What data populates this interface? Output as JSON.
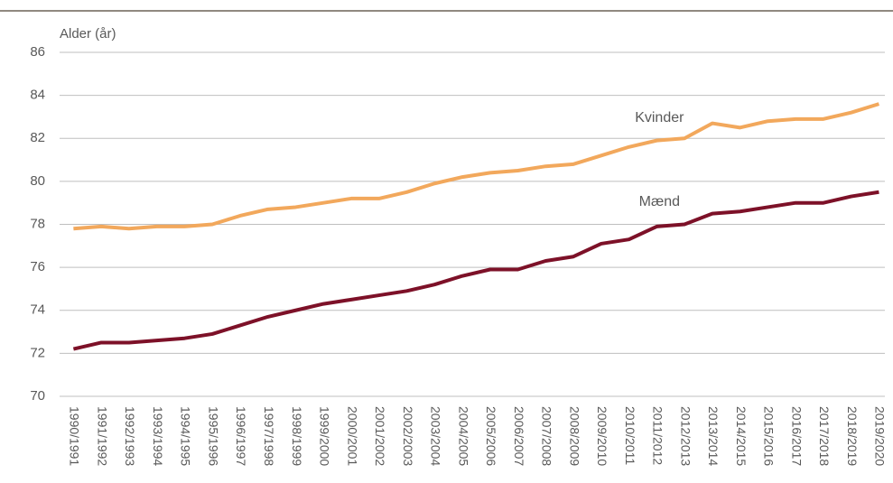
{
  "chart_data": {
    "type": "line",
    "y_axis_label": "Alder (år)",
    "categories": [
      "1990/1991",
      "1991/1992",
      "1992/1993",
      "1993/1994",
      "1994/1995",
      "1995/1996",
      "1996/1997",
      "1997/1998",
      "1998/1999",
      "1999/2000",
      "2000/2001",
      "2001/2002",
      "2002/2003",
      "2003/2004",
      "2004/2005",
      "2005/2006",
      "2006/2007",
      "2007/2008",
      "2008/2009",
      "2009/2010",
      "2010/2011",
      "2011/2012",
      "2012/2013",
      "2013/2014",
      "2014/2015",
      "2015/2016",
      "2016/2017",
      "2017/2018",
      "2018/2019",
      "2019/2020"
    ],
    "series": [
      {
        "name": "Kvinder",
        "color": "#f2a85c",
        "values": [
          77.8,
          77.9,
          77.8,
          77.9,
          77.9,
          78.0,
          78.4,
          78.7,
          78.8,
          79.0,
          79.2,
          79.2,
          79.5,
          79.9,
          80.2,
          80.4,
          80.5,
          80.7,
          80.8,
          81.2,
          81.6,
          81.9,
          82.0,
          82.7,
          82.5,
          82.8,
          82.9,
          82.9,
          83.2,
          83.6
        ]
      },
      {
        "name": "Mænd",
        "color": "#7d1128",
        "values": [
          72.2,
          72.5,
          72.5,
          72.6,
          72.7,
          72.9,
          73.3,
          73.7,
          74.0,
          74.3,
          74.5,
          74.7,
          74.9,
          75.2,
          75.6,
          75.9,
          75.9,
          76.3,
          76.5,
          77.1,
          77.3,
          77.9,
          78.0,
          78.5,
          78.6,
          78.8,
          79.0,
          79.0,
          79.3,
          79.5
        ]
      }
    ],
    "ylim": [
      70,
      86
    ],
    "yticks": [
      70,
      72,
      74,
      76,
      78,
      80,
      82,
      84,
      86
    ],
    "grid": true
  }
}
